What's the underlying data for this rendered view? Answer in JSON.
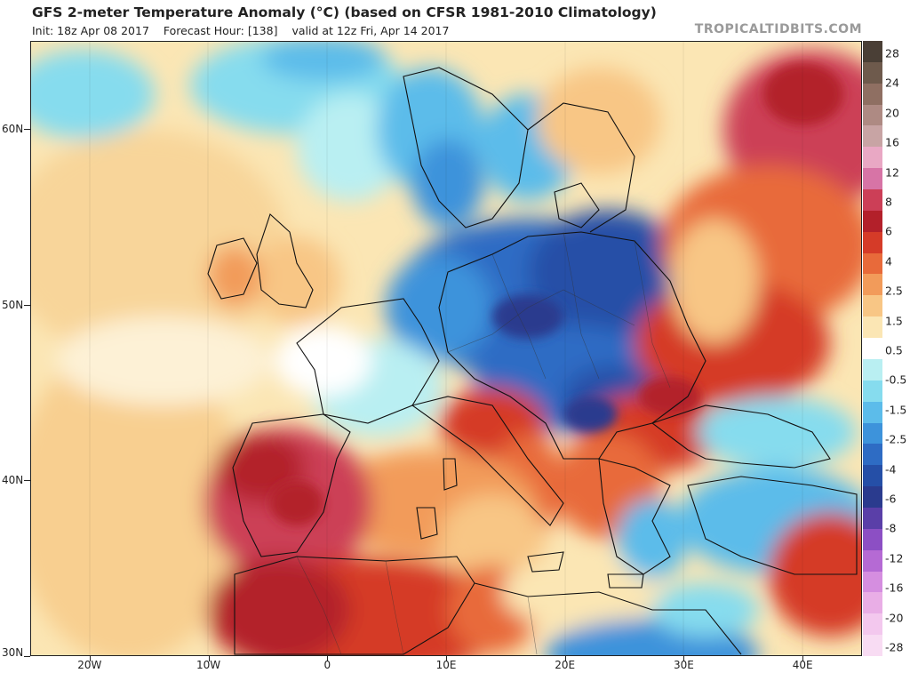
{
  "header": {
    "title": "GFS 2-meter Temperature Anomaly (°C) (based on CFSR 1981-2010 Climatology)",
    "init": "Init: 18z Apr 08 2017",
    "forecast_hour": "Forecast Hour: [138]",
    "valid": "valid at 12z Fri, Apr 14 2017",
    "brand": "TROPICALTIDBITS.COM"
  },
  "map": {
    "region": "Europe / North Africa",
    "lon_range": [
      -25,
      45
    ],
    "lat_range": [
      30,
      65
    ],
    "x_ticks": [
      {
        "lon": -20,
        "label": "20W"
      },
      {
        "lon": -10,
        "label": "10W"
      },
      {
        "lon": 0,
        "label": "0"
      },
      {
        "lon": 10,
        "label": "10E"
      },
      {
        "lon": 20,
        "label": "20E"
      },
      {
        "lon": 30,
        "label": "30E"
      },
      {
        "lon": 40,
        "label": "40E"
      }
    ],
    "y_ticks": [
      {
        "lat": 60,
        "label": "60N"
      },
      {
        "lat": 50,
        "label": "50N"
      },
      {
        "lat": 40,
        "label": "40N"
      },
      {
        "lat": 30,
        "label": "30N"
      }
    ]
  },
  "colorbar": {
    "labels": [
      "28",
      "24",
      "20",
      "16",
      "12",
      "8",
      "6",
      "4",
      "2.5",
      "1.5",
      "0.5",
      "-0.5",
      "-1.5",
      "-2.5",
      "-4",
      "-6",
      "-8",
      "-12",
      "-16",
      "-20",
      "-28"
    ],
    "colors": [
      "#4a3f36",
      "#6e5a4c",
      "#8f6f62",
      "#ae8a83",
      "#c8a4a4",
      "#e9a8c4",
      "#d774a6",
      "#cc3f57",
      "#b3202a",
      "#d53b28",
      "#e86a3a",
      "#f29b5a",
      "#f8c685",
      "#fbe6b4",
      "#ffffff",
      "#b9eff2",
      "#86dcee",
      "#5cbcea",
      "#3d93db",
      "#2e6cc4",
      "#254fa7",
      "#2a3b8e",
      "#5a3fa8",
      "#8c4fc4",
      "#b56ad4",
      "#d58ee0",
      "#e9aee6",
      "#f3c8ee",
      "#f8dcf3"
    ]
  }
}
